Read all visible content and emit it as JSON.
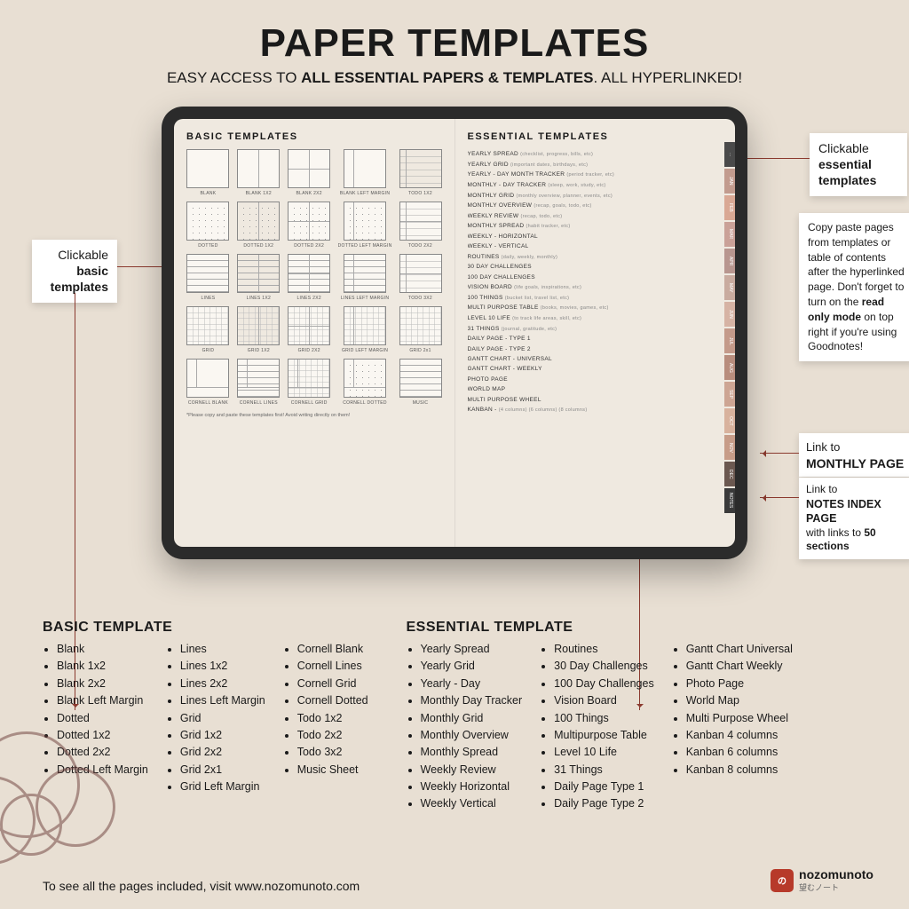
{
  "header": {
    "title": "PAPER TEMPLATES",
    "sub_pre": "EASY ACCESS TO ",
    "sub_bold": "ALL ESSENTIAL PAPERS & TEMPLATES",
    "sub_post": ". ALL HYPERLINKED!"
  },
  "tablet": {
    "left_title": "BASIC TEMPLATES",
    "right_title": "ESSENTIAL TEMPLATES",
    "footer_note": "*Please copy and paste these templates first! Avoid writing directly on them!",
    "thumbs": [
      [
        {
          "l": "BLANK",
          "c": ""
        },
        {
          "l": "BLANK 1X2",
          "c": "v2"
        },
        {
          "l": "BLANK 2X2",
          "c": "v4"
        },
        {
          "l": "BLANK LEFT MARGIN",
          "c": "lm"
        },
        {
          "l": "TODO 1X2",
          "c": "todo v2"
        }
      ],
      [
        {
          "l": "DOTTED",
          "c": "dots"
        },
        {
          "l": "DOTTED 1X2",
          "c": "dots v2"
        },
        {
          "l": "DOTTED 2X2",
          "c": "dots v4"
        },
        {
          "l": "DOTTED LEFT MARGIN",
          "c": "dots lm"
        },
        {
          "l": "TODO 2X2",
          "c": "todo v4"
        }
      ],
      [
        {
          "l": "LINES",
          "c": "lines"
        },
        {
          "l": "LINES 1X2",
          "c": "lines v2"
        },
        {
          "l": "LINES 2X2",
          "c": "lines v4"
        },
        {
          "l": "LINES LEFT MARGIN",
          "c": "lines lm"
        },
        {
          "l": "TODO 3X2",
          "c": "todo v4"
        }
      ],
      [
        {
          "l": "GRID",
          "c": "gridp"
        },
        {
          "l": "GRID 1X2",
          "c": "gridp v2"
        },
        {
          "l": "GRID 2X2",
          "c": "gridp v4"
        },
        {
          "l": "GRID LEFT MARGIN",
          "c": "gridp lm"
        },
        {
          "l": "GRID 2x1",
          "c": "gridp"
        }
      ],
      [
        {
          "l": "CORNELL BLANK",
          "c": "corn"
        },
        {
          "l": "CORNELL LINES",
          "c": "corn lines"
        },
        {
          "l": "CORNELL GRID",
          "c": "corn gridp"
        },
        {
          "l": "CORNELL DOTTED",
          "c": "corn dots"
        },
        {
          "l": "MUSIC",
          "c": "lines"
        }
      ]
    ],
    "essential_list": [
      {
        "t": "YEARLY SPREAD",
        "h": "(checklist, progress, bills, etc)"
      },
      {
        "t": "YEARLY GRID",
        "h": "(important dates, birthdays, etc)"
      },
      {
        "t": "YEARLY - DAY MONTH TRACKER",
        "h": "(period tracker, etc)"
      },
      {
        "t": "MONTHLY - DAY TRACKER",
        "h": "(sleep, work, study, etc)"
      },
      {
        "t": "MONTHLY GRID",
        "h": "(monthly overview, planner, events, etc)"
      },
      {
        "t": "MONTHLY OVERVIEW",
        "h": "(recap, goals, todo, etc)"
      },
      {
        "t": "WEEKLY REVIEW",
        "h": "(recap, todo, etc)"
      },
      {
        "t": "MONTHLY SPREAD",
        "h": "(habit tracker, etc)"
      },
      {
        "t": "WEEKLY - HORIZONTAL",
        "h": ""
      },
      {
        "t": "WEEKLY - VERTICAL",
        "h": ""
      },
      {
        "t": "ROUTINES",
        "h": "(daily, weekly, monthly)"
      },
      {
        "t": "30 DAY CHALLENGES",
        "h": ""
      },
      {
        "t": "100 DAY CHALLENGES",
        "h": ""
      },
      {
        "t": "VISION BOARD",
        "h": "(life goals, inspirations, etc)"
      },
      {
        "t": "100 THINGS",
        "h": "(bucket list, travel list, etc)"
      },
      {
        "t": "MULTI PURPOSE TABLE",
        "h": "(books, movies, games, etc)"
      },
      {
        "t": "LEVEL 10 LIFE",
        "h": "(to track life areas, skill, etc)"
      },
      {
        "t": "31 THINGS",
        "h": "(journal, gratitude, etc)"
      },
      {
        "t": "DAILY PAGE - TYPE 1",
        "h": ""
      },
      {
        "t": "DAILY PAGE - TYPE 2",
        "h": ""
      },
      {
        "t": "GANTT CHART - UNIVERSAL",
        "h": ""
      },
      {
        "t": "GANTT CHART - WEEKLY",
        "h": ""
      },
      {
        "t": "PHOTO PAGE",
        "h": ""
      },
      {
        "t": "WORLD MAP",
        "h": ""
      },
      {
        "t": "MULTI PURPOSE WHEEL",
        "h": ""
      },
      {
        "t": "KANBAN -",
        "h": "(4 columns) (6 columns) (8 columns)"
      }
    ],
    "tabs": [
      {
        "l": "...",
        "c": "#4a4a4a"
      },
      {
        "l": "JAN",
        "c": "#c29b8e"
      },
      {
        "l": "FEB",
        "c": "#d9a894"
      },
      {
        "l": "MAR",
        "c": "#caa198"
      },
      {
        "l": "APR",
        "c": "#b8968f"
      },
      {
        "l": "MAY",
        "c": "#c9ab9f"
      },
      {
        "l": "JUN",
        "c": "#d6b3a4"
      },
      {
        "l": "JUL",
        "c": "#c49a8a"
      },
      {
        "l": "AUG",
        "c": "#b88d7d"
      },
      {
        "l": "SEP",
        "c": "#cda593"
      },
      {
        "l": "OCT",
        "c": "#d8b29d"
      },
      {
        "l": "NOV",
        "c": "#c79c88"
      },
      {
        "l": "DEC",
        "c": "#6b5850"
      },
      {
        "l": "NOTES",
        "c": "#3a3a3a"
      }
    ]
  },
  "callouts": {
    "basic": {
      "pre": "Clickable",
      "b": "basic",
      "post": "templates"
    },
    "essential": {
      "pre": "Clickable",
      "b": "essential",
      "post": "templates"
    },
    "copy": {
      "text": "Copy paste pages from templates or table of contents after the hyperlinked page. Don't forget to turn on the ",
      "b": "read only mode",
      "post": " on top right if you're using Goodnotes!"
    },
    "monthly": {
      "pre": "Link to",
      "b": "MONTHLY PAGE"
    },
    "notes": {
      "pre": "Link to",
      "b": "NOTES INDEX PAGE",
      "post": "with links to ",
      "b2": "50 sections"
    }
  },
  "lists": {
    "basic_title": "BASIC TEMPLATE",
    "essential_title": "ESSENTIAL TEMPLATE",
    "basic": [
      [
        "Blank",
        "Blank 1x2",
        "Blank 2x2",
        "Blank Left Margin",
        "Dotted",
        "Dotted 1x2",
        "Dotted 2x2",
        "Dotted Left Margin"
      ],
      [
        "Lines",
        "Lines 1x2",
        "Lines 2x2",
        "Lines Left Margin",
        "Grid",
        "Grid 1x2",
        "Grid 2x2",
        "Grid 2x1",
        "Grid Left Margin"
      ],
      [
        "Cornell Blank",
        "Cornell Lines",
        "Cornell Grid",
        "Cornell Dotted",
        "Todo 1x2",
        "Todo 2x2",
        "Todo 3x2",
        "Music Sheet"
      ]
    ],
    "essential": [
      [
        "Yearly Spread",
        "Yearly Grid",
        "Yearly - Day",
        "Monthly Day Tracker",
        "Monthly Grid",
        "Monthly Overview",
        "Monthly Spread",
        "Weekly Review",
        "Weekly Horizontal",
        "Weekly Vertical"
      ],
      [
        "Routines",
        "30 Day Challenges",
        "100 Day Challenges",
        "Vision Board",
        "100 Things",
        "Multipurpose Table",
        "Level 10 Life",
        "31 Things",
        "Daily Page Type 1",
        "Daily Page Type 2"
      ],
      [
        "Gantt Chart Universal",
        "Gantt Chart Weekly",
        "Photo Page",
        "World Map",
        "Multi Purpose Wheel",
        "Kanban 4 columns",
        "Kanban 6 columns",
        "Kanban 8 columns"
      ]
    ]
  },
  "footer": {
    "text": "To see all the pages included, visit www.nozomunoto.com",
    "brand": "nozomunoto",
    "jp": "望むノート"
  }
}
